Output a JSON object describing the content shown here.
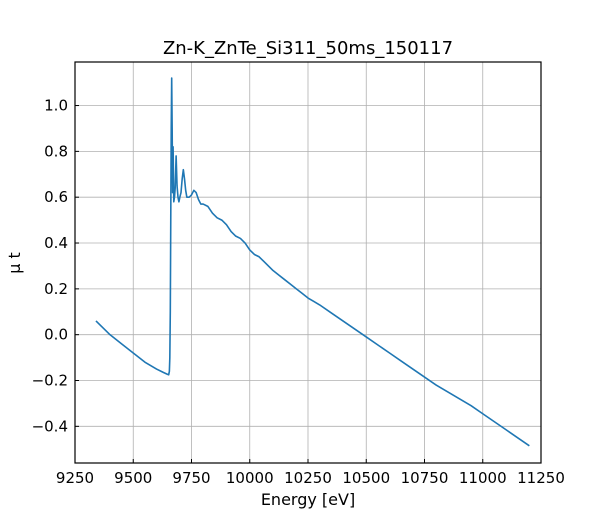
{
  "chart_data": {
    "type": "line",
    "title": "Zn-K_ZnTe_Si311_50ms_150117",
    "xlabel": "Energy [eV]",
    "ylabel": "μ t",
    "xlim": [
      9250,
      11250
    ],
    "ylim": [
      -0.56,
      1.19
    ],
    "grid": true,
    "line_color": "#1f77b4",
    "x_ticks": [
      9250,
      9500,
      9750,
      10000,
      10250,
      10500,
      10750,
      11000,
      11250
    ],
    "x_tick_labels": [
      "9250",
      "9500",
      "9750",
      "10000",
      "10250",
      "10500",
      "10750",
      "11000",
      "11250"
    ],
    "y_ticks": [
      -0.4,
      -0.2,
      0.0,
      0.2,
      0.4,
      0.6,
      0.8,
      1.0
    ],
    "y_tick_labels": [
      "−0.4",
      "−0.2",
      "0.0",
      "0.2",
      "0.4",
      "0.6",
      "0.8",
      "1.0"
    ],
    "series": [
      {
        "x": [
          9340,
          9400,
          9450,
          9500,
          9550,
          9600,
          9630,
          9645,
          9652,
          9655,
          9657,
          9659,
          9661,
          9663,
          9665,
          9667,
          9669,
          9671,
          9674,
          9677,
          9680,
          9684,
          9688,
          9692,
          9696,
          9700,
          9705,
          9710,
          9715,
          9720,
          9725,
          9730,
          9740,
          9750,
          9760,
          9770,
          9780,
          9790,
          9800,
          9820,
          9840,
          9860,
          9880,
          9900,
          9920,
          9940,
          9960,
          9980,
          10000,
          10020,
          10040,
          10060,
          10080,
          10100,
          10125,
          10150,
          10175,
          10200,
          10225,
          10250,
          10275,
          10300,
          10350,
          10400,
          10450,
          10500,
          10550,
          10600,
          10650,
          10700,
          10750,
          10800,
          10850,
          10900,
          10950,
          11000,
          11050,
          11100,
          11150,
          11200
        ],
        "y": [
          0.06,
          0.0,
          -0.04,
          -0.08,
          -0.12,
          -0.15,
          -0.165,
          -0.172,
          -0.175,
          -0.16,
          -0.1,
          0.1,
          0.5,
          0.9,
          1.12,
          0.9,
          0.62,
          0.82,
          0.58,
          0.6,
          0.64,
          0.78,
          0.65,
          0.6,
          0.58,
          0.6,
          0.62,
          0.68,
          0.72,
          0.68,
          0.63,
          0.6,
          0.6,
          0.61,
          0.63,
          0.62,
          0.59,
          0.57,
          0.57,
          0.56,
          0.53,
          0.51,
          0.5,
          0.48,
          0.45,
          0.43,
          0.42,
          0.4,
          0.37,
          0.35,
          0.34,
          0.32,
          0.3,
          0.28,
          0.26,
          0.24,
          0.22,
          0.2,
          0.18,
          0.16,
          0.145,
          0.13,
          0.095,
          0.06,
          0.025,
          -0.01,
          -0.045,
          -0.08,
          -0.115,
          -0.15,
          -0.185,
          -0.22,
          -0.25,
          -0.28,
          -0.31,
          -0.345,
          -0.38,
          -0.415,
          -0.45,
          -0.485
        ]
      }
    ]
  }
}
